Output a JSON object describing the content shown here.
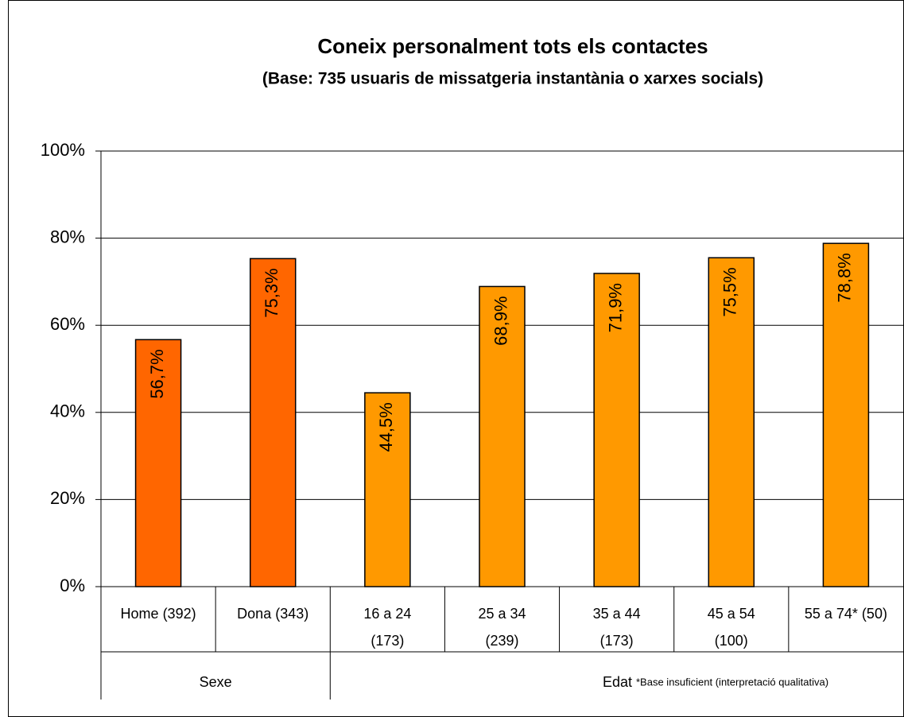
{
  "chart_data": {
    "type": "bar",
    "title": "Coneix personalment tots els contactes",
    "subtitle": "(Base: 735 usuaris de missatgeria instantània o xarxes socials)",
    "ylim": [
      0,
      100
    ],
    "yticks": [
      {
        "value": 0,
        "label": "0%"
      },
      {
        "value": 20,
        "label": "20%"
      },
      {
        "value": 40,
        "label": "40%"
      },
      {
        "value": 60,
        "label": "60%"
      },
      {
        "value": 80,
        "label": "80%"
      },
      {
        "value": 100,
        "label": "100%"
      }
    ],
    "grid": true,
    "groups": [
      {
        "name": "Sexe",
        "color": "#ff6600",
        "categories": [
          [
            "Home (392)"
          ],
          [
            "Dona (343)"
          ]
        ],
        "values": [
          56.7,
          75.3
        ],
        "value_labels": [
          "56,7%",
          "75,3%"
        ]
      },
      {
        "name": "Edat",
        "color": "#ff9900",
        "categories": [
          [
            "16 a 24",
            "(173)"
          ],
          [
            "25 a 34",
            "(239)"
          ],
          [
            "35 a 44",
            "(173)"
          ],
          [
            "45 a 54",
            "(100)"
          ],
          [
            "55 a 74* (50)"
          ]
        ],
        "values": [
          44.5,
          68.9,
          71.9,
          75.5,
          78.8
        ],
        "value_labels": [
          "44,5%",
          "68,9%",
          "71,9%",
          "75,5%",
          "78,8%"
        ]
      }
    ],
    "note": "*Base insuficient (interpretació qualitativa)"
  }
}
